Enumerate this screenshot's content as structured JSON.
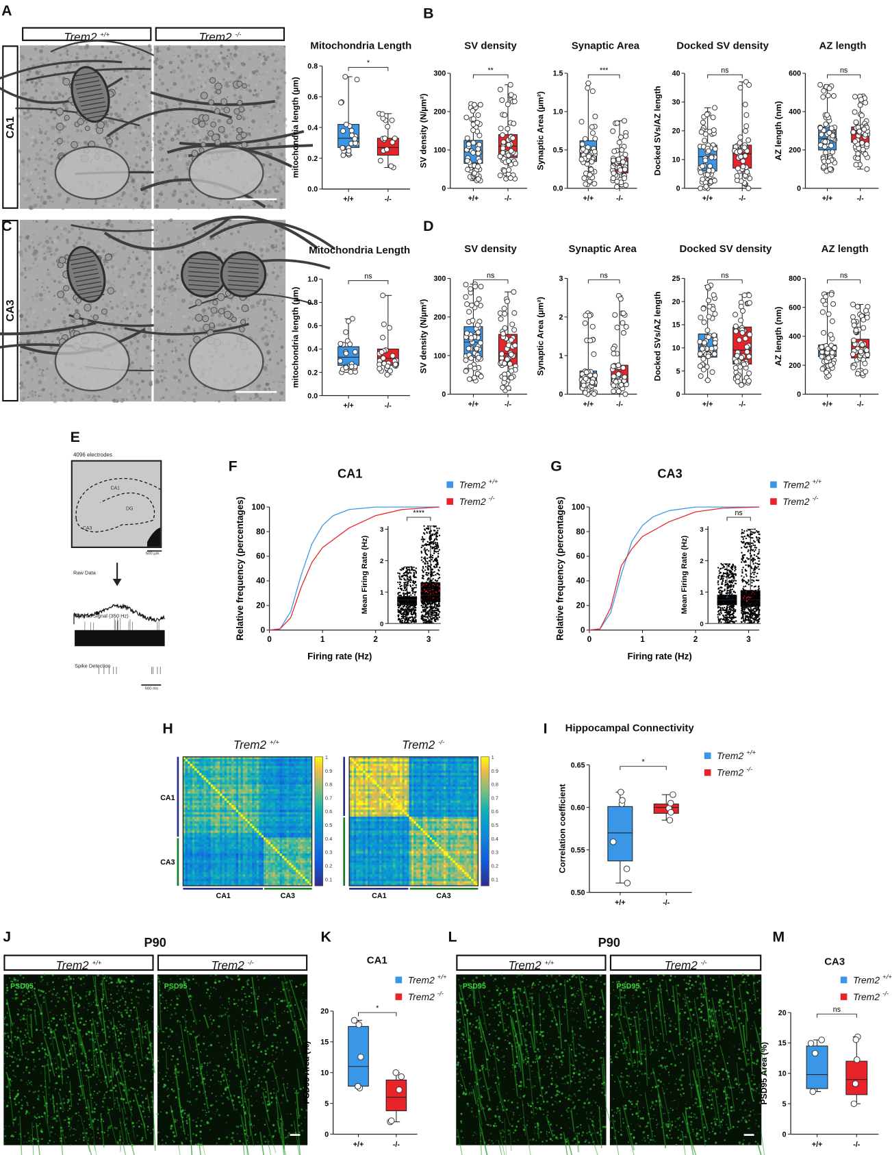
{
  "panels": {
    "A": "A",
    "B": "B",
    "C": "C",
    "D": "D",
    "E": "E",
    "F": "F",
    "G": "G",
    "H": "H",
    "I": "I",
    "J": "J",
    "K": "K",
    "L": "L",
    "M": "M"
  },
  "genotypes": {
    "wt_name": "Trem2",
    "wt_sup": "+/+",
    "ko_name": "Trem2",
    "ko_sup": "-/-"
  },
  "em": {
    "row1_label": "CA1",
    "row2_label": "CA3"
  },
  "E": {
    "electrodes": "4096 electrodes",
    "regions": [
      "CA1",
      "DG",
      "CA3"
    ],
    "scale_space": "500 µm",
    "raw": "Raw Data",
    "filtered": "Filtered Signal (350 Hz)",
    "spike": "Spike Detection",
    "scale_time": "500 ms"
  },
  "J": {
    "title": "P90",
    "stain": "PSD95"
  },
  "L": {
    "title": "P90",
    "stain": "PSD95"
  },
  "colors": {
    "wt": "#3a97e8",
    "ko": "#e8232a"
  },
  "chart_data": [
    {
      "type": "box",
      "panel": "A",
      "title": "Mitochondria Length",
      "ylabel": "mitochondria length (µm)",
      "yticks": [
        "0.0",
        "0.2",
        "0.4",
        "0.6",
        "0.8"
      ],
      "categories": [
        "+/+",
        "-/-"
      ],
      "significance": "*",
      "series": [
        {
          "name": "Trem2 +/+",
          "min": 0.22,
          "q1": 0.27,
          "median": 0.33,
          "q3": 0.42,
          "max": 0.73,
          "n": 22
        },
        {
          "name": "Trem2 -/-",
          "min": 0.14,
          "q1": 0.22,
          "median": 0.27,
          "q3": 0.33,
          "max": 0.49,
          "n": 16
        }
      ]
    },
    {
      "type": "box",
      "panel": "B",
      "title": "SV density",
      "ylabel": "SV density (N/µm²)",
      "yticks": [
        "0",
        "100",
        "200",
        "300"
      ],
      "categories": [
        "+/+",
        "-/-"
      ],
      "significance": "**",
      "series": [
        {
          "name": "Trem2 +/+",
          "min": 20,
          "q1": 65,
          "median": 95,
          "q3": 125,
          "max": 220,
          "n": 60
        },
        {
          "name": "Trem2 -/-",
          "min": 25,
          "q1": 80,
          "median": 110,
          "q3": 140,
          "max": 270,
          "n": 60
        }
      ]
    },
    {
      "type": "box",
      "panel": "B",
      "title": "Synaptic Area",
      "ylabel": "Synaptic Area (µm²)",
      "yticks": [
        "0.0",
        "0.5",
        "1.0",
        "1.5"
      ],
      "categories": [
        "+/+",
        "-/-"
      ],
      "significance": "***",
      "series": [
        {
          "name": "Trem2 +/+",
          "min": 0.05,
          "q1": 0.35,
          "median": 0.45,
          "q3": 0.62,
          "max": 1.37,
          "n": 55
        },
        {
          "name": "Trem2 -/-",
          "min": 0.02,
          "q1": 0.2,
          "median": 0.3,
          "q3": 0.4,
          "max": 0.88,
          "n": 60
        }
      ]
    },
    {
      "type": "box",
      "panel": "B",
      "title": "Docked SV density",
      "ylabel": "Docked SVs/AZ length",
      "yticks": [
        "0",
        "10",
        "20",
        "30",
        "40"
      ],
      "categories": [
        "+/+",
        "-/-"
      ],
      "significance": "ns",
      "series": [
        {
          "name": "Trem2 +/+",
          "min": 0,
          "q1": 6,
          "median": 11,
          "q3": 15,
          "max": 28,
          "n": 60
        },
        {
          "name": "Trem2 -/-",
          "min": 0,
          "q1": 7,
          "median": 12,
          "q3": 15,
          "max": 37,
          "n": 60
        }
      ]
    },
    {
      "type": "box",
      "panel": "B",
      "title": "AZ length",
      "ylabel": "AZ length (nm)",
      "yticks": [
        "0",
        "200",
        "400",
        "600"
      ],
      "categories": [
        "+/+",
        "-/-"
      ],
      "significance": "ns",
      "series": [
        {
          "name": "Trem2 +/+",
          "min": 90,
          "q1": 200,
          "median": 260,
          "q3": 320,
          "max": 540,
          "n": 60
        },
        {
          "name": "Trem2 -/-",
          "min": 100,
          "q1": 240,
          "median": 290,
          "q3": 320,
          "max": 480,
          "n": 60
        }
      ]
    },
    {
      "type": "box",
      "panel": "C",
      "title": "Mitochondria Length",
      "ylabel": "mitochondria length (µm)",
      "yticks": [
        "0.0",
        "0.2",
        "0.4",
        "0.6",
        "0.8",
        "1.0"
      ],
      "categories": [
        "+/+",
        "-/-"
      ],
      "significance": "ns",
      "series": [
        {
          "name": "Trem2 +/+",
          "min": 0.2,
          "q1": 0.26,
          "median": 0.33,
          "q3": 0.42,
          "max": 0.66,
          "n": 22
        },
        {
          "name": "Trem2 -/-",
          "min": 0.18,
          "q1": 0.26,
          "median": 0.32,
          "q3": 0.4,
          "max": 0.86,
          "n": 26
        }
      ]
    },
    {
      "type": "box",
      "panel": "D",
      "title": "SV density",
      "ylabel": "SV density (N/µm²)",
      "yticks": [
        "0",
        "100",
        "200",
        "300"
      ],
      "categories": [
        "+/+",
        "-/-"
      ],
      "significance": "ns",
      "series": [
        {
          "name": "Trem2 +/+",
          "min": 35,
          "q1": 95,
          "median": 135,
          "q3": 175,
          "max": 285,
          "n": 60
        },
        {
          "name": "Trem2 -/-",
          "min": 10,
          "q1": 75,
          "median": 105,
          "q3": 155,
          "max": 265,
          "n": 55
        }
      ]
    },
    {
      "type": "box",
      "panel": "D",
      "title": "Synaptic Area",
      "ylabel": "Synaptic Area (µm²)",
      "yticks": [
        "0",
        "1",
        "2",
        "3"
      ],
      "categories": [
        "+/+",
        "-/-"
      ],
      "significance": "ns",
      "series": [
        {
          "name": "Trem2 +/+",
          "min": 0,
          "q1": 0.2,
          "median": 0.35,
          "q3": 0.6,
          "max": 2.1,
          "n": 55
        },
        {
          "name": "Trem2 -/-",
          "min": 0,
          "q1": 0.3,
          "median": 0.45,
          "q3": 0.75,
          "max": 2.55,
          "n": 60
        }
      ]
    },
    {
      "type": "box",
      "panel": "D",
      "title": "Docked SV density",
      "ylabel": "Docked SVs/AZ length",
      "yticks": [
        "0",
        "5",
        "10",
        "15",
        "20",
        "25"
      ],
      "categories": [
        "+/+",
        "-/-"
      ],
      "significance": "ns",
      "series": [
        {
          "name": "Trem2 +/+",
          "min": 3,
          "q1": 8,
          "median": 10,
          "q3": 13,
          "max": 23.5,
          "n": 60
        },
        {
          "name": "Trem2 -/-",
          "min": 2,
          "q1": 6.5,
          "median": 9.5,
          "q3": 14.5,
          "max": 21.5,
          "n": 60
        }
      ]
    },
    {
      "type": "box",
      "panel": "D",
      "title": "AZ length",
      "ylabel": "AZ length (nm)",
      "yticks": [
        "0",
        "200",
        "400",
        "600",
        "800"
      ],
      "categories": [
        "+/+",
        "-/-"
      ],
      "significance": "ns",
      "series": [
        {
          "name": "Trem2 +/+",
          "min": 120,
          "q1": 260,
          "median": 300,
          "q3": 340,
          "max": 700,
          "n": 60
        },
        {
          "name": "Trem2 -/-",
          "min": 130,
          "q1": 250,
          "median": 310,
          "q3": 380,
          "max": 620,
          "n": 60
        }
      ]
    },
    {
      "type": "line",
      "panel": "F",
      "title": "CA1",
      "xlabel": "Firing rate (Hz)",
      "ylabel": "Relative frequency (percentages)",
      "xticks": [
        "0",
        "1",
        "2",
        "3"
      ],
      "yticks": [
        "0",
        "20",
        "40",
        "60",
        "80",
        "100"
      ],
      "xlim": [
        0,
        3.2
      ],
      "series": [
        {
          "name": "Trem2 +/+",
          "x": [
            0,
            0.2,
            0.4,
            0.6,
            0.8,
            1.0,
            1.2,
            1.5,
            2.0,
            3.2
          ],
          "y": [
            0,
            1,
            15,
            45,
            70,
            85,
            93,
            98,
            100,
            100
          ]
        },
        {
          "name": "Trem2 -/-",
          "x": [
            0,
            0.2,
            0.4,
            0.6,
            0.8,
            1.0,
            1.5,
            2.0,
            2.5,
            3.2
          ],
          "y": [
            0,
            1,
            10,
            35,
            55,
            67,
            83,
            93,
            98,
            100
          ]
        }
      ],
      "inset": {
        "ylabel": "Mean Firing Rate (Hz)",
        "yticks": [
          "0",
          "1",
          "2",
          "3"
        ],
        "significance": "****",
        "series": [
          {
            "name": "Trem2 +/+",
            "min": 0.02,
            "q1": 0.6,
            "median": 0.75,
            "q3": 0.85,
            "max": 1.8,
            "n": 700
          },
          {
            "name": "Trem2 -/-",
            "min": 0.02,
            "q1": 0.7,
            "median": 0.9,
            "q3": 1.3,
            "max": 3.1,
            "n": 900
          }
        ]
      }
    },
    {
      "type": "line",
      "panel": "G",
      "title": "CA3",
      "xlabel": "Firing rate (Hz)",
      "ylabel": "Relative frequency (percentages)",
      "xticks": [
        "0",
        "1",
        "2",
        "3"
      ],
      "yticks": [
        "0",
        "20",
        "40",
        "60",
        "80",
        "100"
      ],
      "xlim": [
        0,
        3.2
      ],
      "series": [
        {
          "name": "Trem2 +/+",
          "x": [
            0,
            0.2,
            0.4,
            0.6,
            0.8,
            1.0,
            1.2,
            1.5,
            2.0,
            3.2
          ],
          "y": [
            0,
            1,
            14,
            45,
            72,
            85,
            92,
            97,
            100,
            100
          ]
        },
        {
          "name": "Trem2 -/-",
          "x": [
            0,
            0.2,
            0.4,
            0.6,
            0.8,
            1.0,
            1.5,
            2.0,
            2.5,
            3.2
          ],
          "y": [
            0,
            1,
            18,
            52,
            66,
            76,
            88,
            96,
            99,
            100
          ]
        }
      ],
      "inset": {
        "ylabel": "Mean Firing Rate (Hz)",
        "yticks": [
          "0",
          "1",
          "2",
          "3"
        ],
        "significance": "ns",
        "series": [
          {
            "name": "Trem2 +/+",
            "min": 0.02,
            "q1": 0.6,
            "median": 0.75,
            "q3": 0.9,
            "max": 1.9,
            "n": 700
          },
          {
            "name": "Trem2 -/-",
            "min": 0.02,
            "q1": 0.55,
            "median": 0.75,
            "q3": 1.05,
            "max": 3.0,
            "n": 800
          }
        ]
      }
    },
    {
      "type": "heatmap",
      "panel": "H",
      "title": "Trem2 +/+",
      "row_labels": [
        "CA1",
        "CA3"
      ],
      "col_labels": [
        "CA1",
        "CA3"
      ],
      "colorbar_ticks": [
        "0.1",
        "0.2",
        "0.3",
        "0.4",
        "0.5",
        "0.6",
        "0.7",
        "0.8",
        "0.9",
        "1"
      ],
      "ca1_fraction": 0.63,
      "mean_within_ca1": 0.66,
      "mean_within_ca3": 0.64,
      "mean_between": 0.45
    },
    {
      "type": "heatmap",
      "panel": "H",
      "title": "Trem2 -/-",
      "row_labels": [
        "CA1",
        "CA3"
      ],
      "col_labels": [
        "CA1",
        "CA3"
      ],
      "colorbar_ticks": [
        "0.1",
        "0.2",
        "0.3",
        "0.4",
        "0.5",
        "0.6",
        "0.7",
        "0.8",
        "0.9",
        "1"
      ],
      "ca1_fraction": 0.47,
      "mean_within_ca1": 0.84,
      "mean_within_ca3": 0.76,
      "mean_between": 0.46
    },
    {
      "type": "box",
      "panel": "I",
      "title": "Hippocampal Connectivity",
      "ylabel": "Correlation coefficient",
      "yticks": [
        "0.50",
        "0.55",
        "0.60",
        "0.65"
      ],
      "categories": [
        "+/+",
        "-/-"
      ],
      "significance": "*",
      "series": [
        {
          "name": "Trem2 +/+",
          "min": 0.511,
          "q1": 0.537,
          "median": 0.57,
          "q3": 0.601,
          "max": 0.618,
          "n": 6
        },
        {
          "name": "Trem2 -/-",
          "min": 0.585,
          "q1": 0.593,
          "median": 0.6,
          "q3": 0.604,
          "max": 0.615,
          "n": 5
        }
      ]
    },
    {
      "type": "box",
      "panel": "K",
      "title": "CA1",
      "ylabel": "PSD95 Area (%)",
      "yticks": [
        "0",
        "5",
        "10",
        "15",
        "20"
      ],
      "categories": [
        "+/+",
        "-/-"
      ],
      "significance": "*",
      "series": [
        {
          "name": "Trem2 +/+",
          "min": 7.5,
          "q1": 7.8,
          "median": 11,
          "q3": 17.5,
          "max": 18.5,
          "n": 5
        },
        {
          "name": "Trem2 -/-",
          "min": 2,
          "q1": 3.8,
          "median": 6,
          "q3": 8.8,
          "max": 10,
          "n": 5
        }
      ]
    },
    {
      "type": "box",
      "panel": "M",
      "title": "CA3",
      "ylabel": "PSD95 Area (%)",
      "yticks": [
        "0",
        "5",
        "10",
        "15",
        "20"
      ],
      "categories": [
        "+/+",
        "-/-"
      ],
      "significance": "ns",
      "series": [
        {
          "name": "Trem2 +/+",
          "min": 7,
          "q1": 7.5,
          "median": 9.8,
          "q3": 14.5,
          "max": 15.5,
          "n": 4
        },
        {
          "name": "Trem2 -/-",
          "min": 5,
          "q1": 6.5,
          "median": 9,
          "q3": 12,
          "max": 16,
          "n": 5
        }
      ]
    }
  ]
}
